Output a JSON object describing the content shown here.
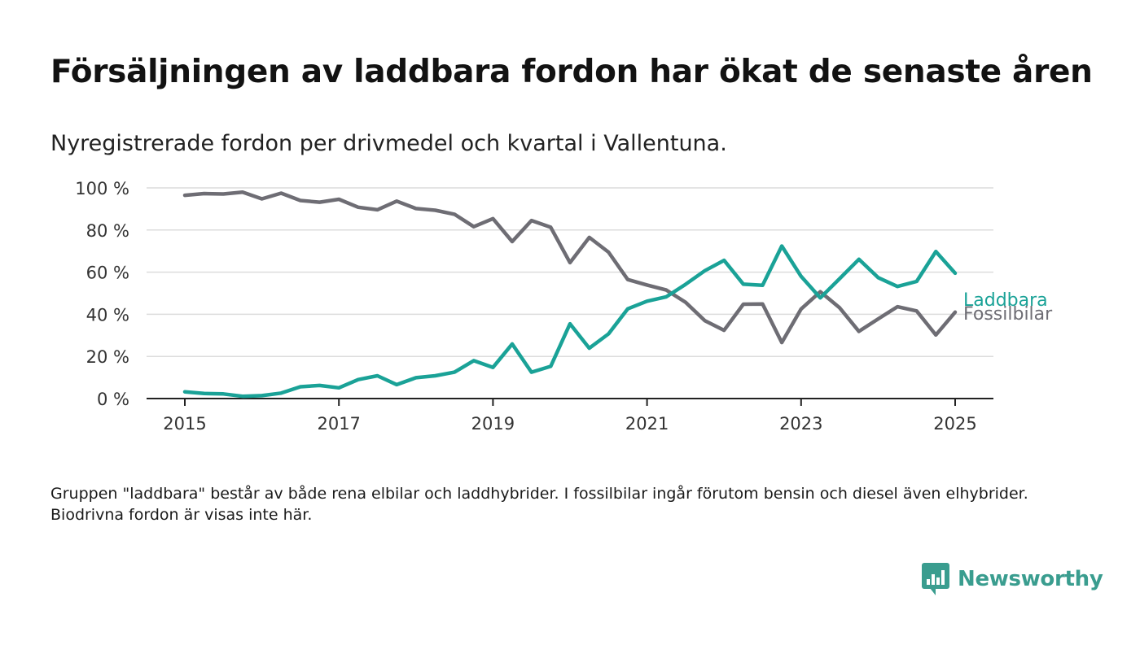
{
  "title": "Försäljningen av laddbara fordon har ökat de senaste åren",
  "subtitle": "Nyregistrerade fordon per drivmedel och kvartal i Vallentuna.",
  "note": "Gruppen \"laddbara\" består av både rena elbilar och laddhybrider. I fossilbilar ingår förutom bensin och diesel även elhybrider. Biodrivna fordon är visas inte här.",
  "logo": {
    "name": "Newsworthy",
    "icon": "newsworthy-logo-icon",
    "color": "#3a9d8f"
  },
  "chart_data": {
    "type": "line",
    "xlim": [
      2015,
      2025
    ],
    "ylim": [
      0,
      100
    ],
    "x_ticks": [
      {
        "value": 2015,
        "label": "2015"
      },
      {
        "value": 2017,
        "label": "2017"
      },
      {
        "value": 2019,
        "label": "2019"
      },
      {
        "value": 2021,
        "label": "2021"
      },
      {
        "value": 2023,
        "label": "2023"
      },
      {
        "value": 2025,
        "label": "2025"
      }
    ],
    "y_ticks": [
      {
        "value": 0,
        "label": "0 %"
      },
      {
        "value": 20,
        "label": "20 %"
      },
      {
        "value": 40,
        "label": "40 %"
      },
      {
        "value": 60,
        "label": "60 %"
      },
      {
        "value": 80,
        "label": "80 %"
      },
      {
        "value": 100,
        "label": "100 %"
      }
    ],
    "grid": true,
    "x": [
      2015.0,
      2015.25,
      2015.5,
      2015.75,
      2016.0,
      2016.25,
      2016.5,
      2016.75,
      2017.0,
      2017.25,
      2017.5,
      2017.75,
      2018.0,
      2018.25,
      2018.5,
      2018.75,
      2019.0,
      2019.25,
      2019.5,
      2019.75,
      2020.0,
      2020.25,
      2020.5,
      2020.75,
      2021.0,
      2021.25,
      2021.5,
      2021.75,
      2022.0,
      2022.25,
      2022.5,
      2022.75,
      2023.0,
      2023.25,
      2023.5,
      2023.75,
      2024.0,
      2024.25,
      2024.5,
      2024.75,
      2025.0
    ],
    "series": [
      {
        "name": "Fossilbilar",
        "color": "#6e6d74",
        "values": [
          96.5,
          97.3,
          97.1,
          98.0,
          94.8,
          97.5,
          94.0,
          93.2,
          94.6,
          90.8,
          89.6,
          93.7,
          90.2,
          89.4,
          87.5,
          81.6,
          85.4,
          74.5,
          84.5,
          81.3,
          64.5,
          76.5,
          69.5,
          56.5,
          53.9,
          51.5,
          45.7,
          37.0,
          32.4,
          44.8,
          44.9,
          26.6,
          42.5,
          50.7,
          43.1,
          31.9,
          37.8,
          43.6,
          41.6,
          30.2,
          41.0
        ]
      },
      {
        "name": "Laddbara",
        "color": "#1aa297",
        "values": [
          3.2,
          2.4,
          2.2,
          1.1,
          1.4,
          2.6,
          5.6,
          6.2,
          5.1,
          9.0,
          10.8,
          6.6,
          9.9,
          10.8,
          12.5,
          18.0,
          14.8,
          25.9,
          12.5,
          15.3,
          35.5,
          23.9,
          30.7,
          42.6,
          46.2,
          48.3,
          54.2,
          60.7,
          65.6,
          54.3,
          53.8,
          72.4,
          58.0,
          47.8,
          56.9,
          66.1,
          57.4,
          53.2,
          55.6,
          69.8,
          59.5
        ]
      }
    ]
  }
}
